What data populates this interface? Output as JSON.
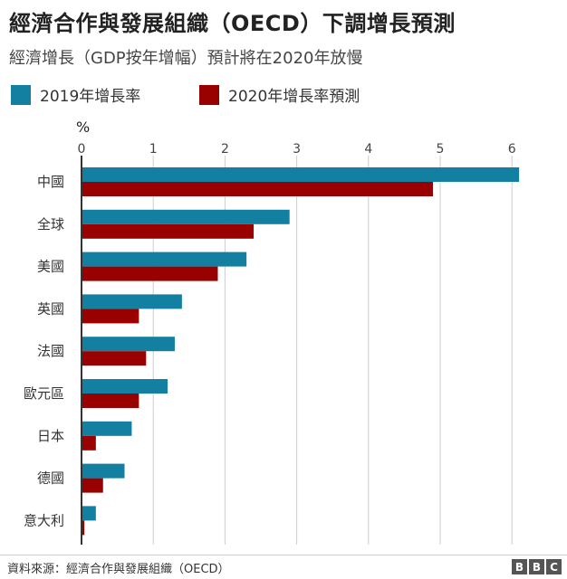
{
  "header": {
    "title": "經濟合作與發展組織（OECD）下調增長預測",
    "subtitle": "經濟增長（GDP按年增幅）預計將在2020年放慢"
  },
  "colors": {
    "series_2019": "#1380A1",
    "series_2020": "#990000",
    "axis": "#333333",
    "grid": "#cccccc"
  },
  "chart_data": {
    "type": "bar",
    "orientation": "horizontal",
    "unit_label": "%",
    "categories": [
      "中國",
      "全球",
      "美國",
      "英國",
      "法國",
      "歐元區",
      "日本",
      "德國",
      "意大利"
    ],
    "series": [
      {
        "name": "2019年增長率",
        "values": [
          6.1,
          2.9,
          2.3,
          1.4,
          1.3,
          1.2,
          0.7,
          0.6,
          0.2
        ]
      },
      {
        "name": "2020年增長率預測",
        "values": [
          4.9,
          2.4,
          1.9,
          0.8,
          0.9,
          0.8,
          0.2,
          0.3,
          0.04
        ]
      }
    ],
    "xlim": [
      0,
      6
    ],
    "xticks": [
      "0",
      "1",
      "2",
      "3",
      "4",
      "5",
      "6"
    ],
    "grid": true,
    "legend_position": "top-left"
  },
  "footer": {
    "source": "資料來源：經濟合作與發展組織（OECD）",
    "logo_letters": [
      "B",
      "B",
      "C"
    ]
  }
}
